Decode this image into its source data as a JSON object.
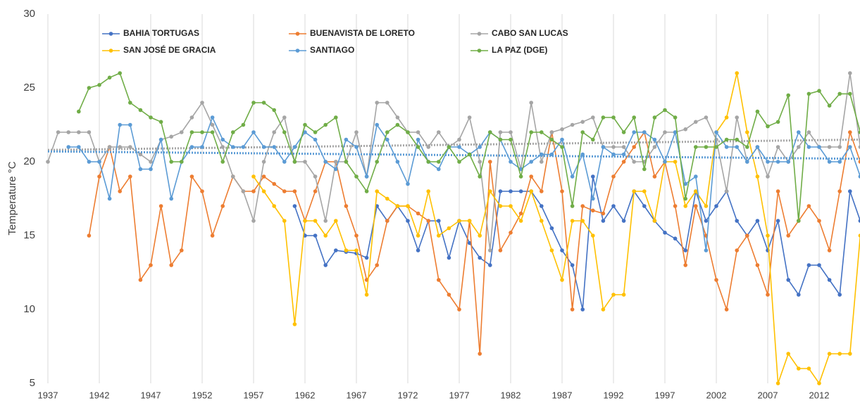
{
  "chart_data": {
    "type": "line",
    "y_label": "Temperature °C",
    "x": [
      1937,
      1938,
      1939,
      1940,
      1941,
      1942,
      1943,
      1944,
      1945,
      1946,
      1947,
      1948,
      1949,
      1950,
      1951,
      1952,
      1953,
      1954,
      1955,
      1956,
      1957,
      1958,
      1959,
      1960,
      1961,
      1962,
      1963,
      1964,
      1965,
      1966,
      1967,
      1968,
      1969,
      1970,
      1971,
      1972,
      1973,
      1974,
      1975,
      1976,
      1977,
      1978,
      1979,
      1980,
      1981,
      1982,
      1983,
      1984,
      1985,
      1986,
      1987,
      1988,
      1989,
      1990,
      1991,
      1992,
      1993,
      1994,
      1995,
      1996,
      1997,
      1998,
      1999,
      2000,
      2001,
      2002,
      2003,
      2004,
      2005,
      2006,
      2007,
      2008,
      2009,
      2010,
      2011,
      2012,
      2013,
      2014,
      2015,
      2016
    ],
    "xlim": [
      1937,
      2016
    ],
    "xticks": [
      1937,
      1942,
      1947,
      1952,
      1957,
      1962,
      1967,
      1972,
      1977,
      1982,
      1987,
      1992,
      1997,
      2002,
      2007,
      2012
    ],
    "ylim": [
      5,
      30
    ],
    "yticks": [
      5,
      10,
      15,
      20,
      25,
      30
    ],
    "grid": "x",
    "series": [
      {
        "name": "BAHIA TORTUGAS",
        "color": "#4472c4",
        "values": [
          null,
          null,
          null,
          null,
          null,
          null,
          null,
          null,
          null,
          null,
          null,
          null,
          null,
          null,
          null,
          null,
          null,
          null,
          null,
          null,
          null,
          null,
          null,
          null,
          17,
          15,
          15,
          13,
          14,
          13.9,
          13.8,
          13.5,
          17,
          16,
          17,
          16,
          14,
          16,
          16,
          13.5,
          16,
          14.5,
          13.5,
          13,
          18,
          18,
          18,
          18,
          17,
          15.5,
          14,
          13,
          10,
          19,
          16,
          17,
          16,
          18,
          17,
          16,
          15.2,
          14.8,
          14,
          18,
          16,
          17,
          18,
          16,
          15,
          16,
          14,
          16,
          12,
          11,
          13,
          13,
          12,
          11,
          18,
          16
        ]
      },
      {
        "name": "BUENAVISTA DE LORETO",
        "color": "#ed7d31",
        "values": [
          null,
          null,
          null,
          null,
          15,
          19,
          21,
          18,
          19,
          12,
          13,
          17,
          13,
          14,
          19,
          18,
          15,
          17,
          19,
          18,
          18,
          19,
          18.5,
          18,
          18,
          16,
          18,
          20,
          20,
          17,
          15,
          12,
          13,
          16,
          17,
          17,
          16.5,
          16,
          12,
          11,
          10,
          16,
          7,
          20,
          14,
          15.2,
          16.5,
          19,
          18,
          22,
          18,
          10,
          17,
          16.7,
          16.5,
          19,
          20,
          21,
          22,
          19,
          20,
          17,
          13,
          17,
          15,
          12,
          10,
          14,
          15,
          13,
          11,
          18,
          15,
          16,
          17,
          16,
          14,
          18,
          22,
          20
        ]
      },
      {
        "name": "CABO SAN LUCAS",
        "color": "#a5a5a5",
        "trend": [
          20.8,
          21.5
        ],
        "values": [
          20,
          22,
          22,
          22,
          22,
          20,
          21,
          21,
          21,
          20.5,
          20,
          21.5,
          21.7,
          22,
          23,
          24,
          22.5,
          21,
          19,
          18,
          16,
          20,
          22,
          23,
          20,
          20,
          19,
          16,
          20,
          20,
          22,
          19,
          24,
          24,
          23,
          22,
          22,
          21,
          22,
          21,
          21.5,
          23,
          20,
          14,
          22,
          22,
          19.5,
          24,
          20,
          22,
          22.2,
          22.5,
          22.7,
          23,
          21,
          21,
          21,
          20,
          20,
          21,
          22,
          22,
          22.2,
          22.7,
          23,
          21.5,
          18,
          23,
          20,
          21,
          19,
          21,
          20,
          21,
          22,
          21,
          21,
          21,
          26,
          21
        ]
      },
      {
        "name": "SAN JOSÉ DE GRACIA",
        "color": "#ffc000",
        "values": [
          null,
          null,
          null,
          null,
          null,
          null,
          null,
          null,
          null,
          null,
          null,
          null,
          null,
          null,
          null,
          null,
          null,
          null,
          null,
          null,
          19,
          18,
          17,
          16,
          9,
          16,
          16,
          15,
          16,
          14,
          14,
          11,
          18,
          17.5,
          17,
          17,
          15,
          18,
          15,
          15.5,
          16,
          16,
          15,
          18,
          17,
          17,
          16,
          18,
          16,
          14,
          12,
          16,
          16,
          15,
          10,
          11,
          11,
          18,
          18,
          16,
          20,
          20,
          17,
          18,
          17,
          22,
          23,
          26,
          22,
          19,
          15,
          5,
          7,
          6,
          6,
          5,
          7,
          7,
          7,
          15
        ]
      },
      {
        "name": "SANTIAGO",
        "color": "#5b9bd5",
        "trend": [
          20.7,
          20.2
        ],
        "values": [
          null,
          null,
          21,
          21,
          20,
          20,
          17.5,
          22.5,
          22.5,
          19.5,
          19.5,
          21.5,
          17.5,
          20,
          21,
          21,
          23,
          21.5,
          21,
          21,
          22,
          21,
          21,
          20,
          21,
          22,
          21.5,
          20,
          19.5,
          21.5,
          21,
          19,
          22.5,
          21.5,
          20,
          18.5,
          21.5,
          20,
          19.5,
          21,
          21,
          20.5,
          21,
          22,
          21.5,
          20,
          19.5,
          20,
          20.5,
          20.5,
          21.5,
          19,
          20.5,
          17.5,
          21,
          20.5,
          20.5,
          22,
          22,
          21.5,
          20,
          22,
          18.5,
          19,
          14,
          22,
          21,
          21,
          20,
          21,
          20,
          20,
          20,
          22,
          21,
          21,
          20,
          20,
          21,
          19
        ]
      },
      {
        "name": "LA PAZ (DGE)",
        "color": "#70ad47",
        "values": [
          null,
          null,
          null,
          23.4,
          25,
          25.2,
          25.7,
          26,
          24,
          23.5,
          23,
          22.7,
          20,
          20,
          22,
          22,
          22,
          20,
          22,
          22.5,
          24,
          24,
          23.5,
          22,
          20,
          22.5,
          22,
          22.5,
          23,
          20,
          19,
          18,
          20,
          22,
          22.5,
          22,
          21,
          20,
          20,
          21,
          20,
          20.5,
          19,
          22,
          21.5,
          21.5,
          19,
          22,
          22,
          21.5,
          21,
          17,
          22,
          21.5,
          23,
          23,
          22,
          23,
          19.5,
          23,
          23.5,
          23,
          17.5,
          21,
          21,
          21,
          21.5,
          21.5,
          21,
          23.4,
          22.4,
          22.7,
          24.5,
          16,
          24.6,
          24.8,
          23.8,
          24.6,
          24.6,
          22
        ]
      }
    ]
  }
}
